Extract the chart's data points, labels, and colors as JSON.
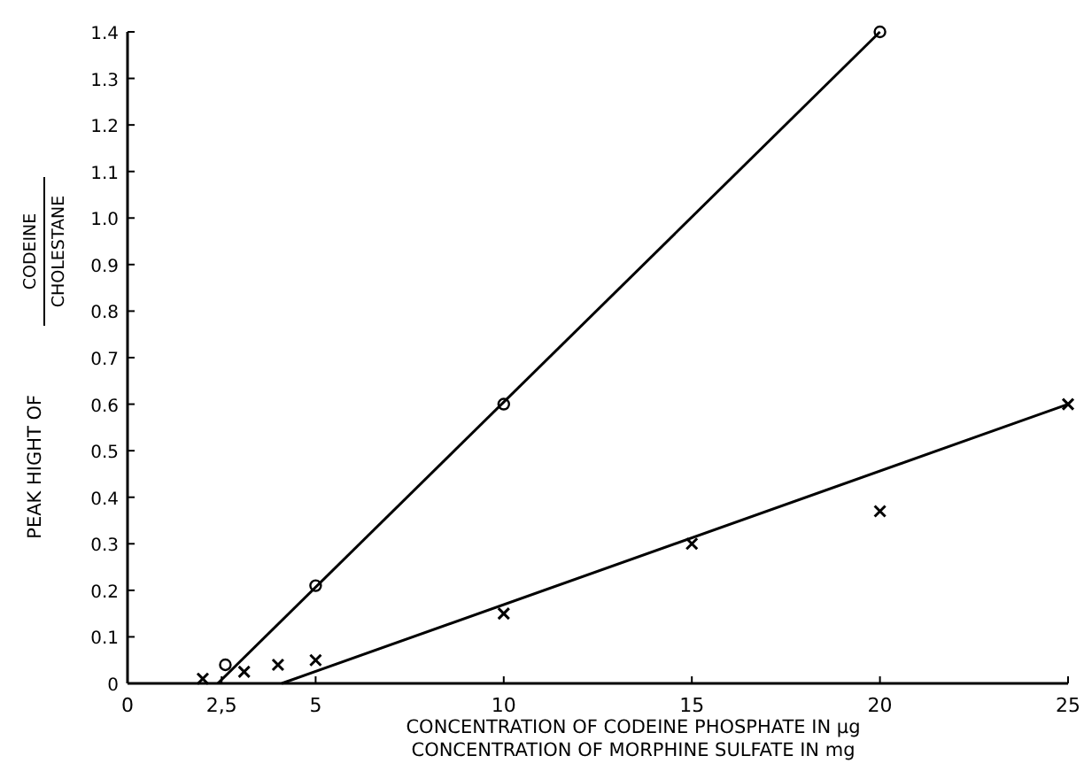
{
  "chart_data": {
    "type": "scatter",
    "xlabel": "CONCENTRATION OF CODEINE PHOSPHATE IN μg\nCONCENTRATION OF MORPHINE SULFATE IN mg",
    "ylabel": "PEAK HIGHT OF CODEINE\nCHOLESTANE",
    "xlim": [
      0,
      25
    ],
    "xticks": [
      0,
      {
        "value": 2.5,
        "label": "2,5"
      },
      5,
      10,
      15,
      20,
      25
    ],
    "ylim": [
      0,
      1.4
    ],
    "yticks": [
      0,
      0.1,
      0.2,
      0.3,
      0.4,
      0.5,
      0.6,
      0.7,
      0.8,
      0.9,
      {
        "value": 1,
        "label": "1.0"
      },
      1.1,
      1.2,
      1.3,
      1.4
    ],
    "grid": false,
    "series": [
      {
        "marker": "circle",
        "color": "#000000",
        "x": [
          2.6,
          5,
          10,
          20
        ],
        "values": [
          0.04,
          0.21,
          0.6,
          1.4
        ]
      },
      {
        "marker": "cross",
        "color": "#000000",
        "x": [
          2,
          3.1,
          4,
          5,
          10,
          15,
          20,
          25
        ],
        "values": [
          0.01,
          0.025,
          0.04,
          0.05,
          0.15,
          0.3,
          0.37,
          0.6
        ]
      },
      {
        "type": "line",
        "marker": "none",
        "line_style": "solid",
        "color": "#000000",
        "x": [
          2.4,
          20
        ],
        "values": [
          0,
          1.4
        ]
      },
      {
        "type": "line",
        "marker": "none",
        "line_style": "solid",
        "color": "#000000",
        "x": [
          4.1,
          25
        ],
        "values": [
          0,
          0.6
        ]
      }
    ]
  }
}
